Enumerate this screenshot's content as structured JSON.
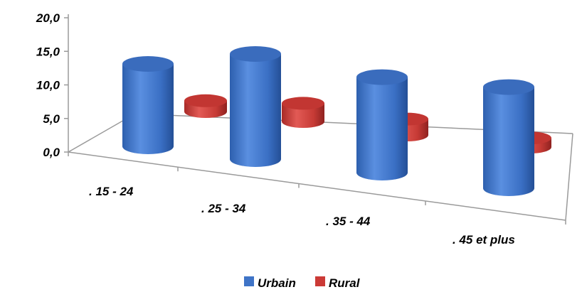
{
  "chart_data": {
    "type": "bar",
    "style": "3d-cylinder",
    "categories": [
      ". 15 - 24",
      ". 25 - 34",
      ". 35 - 44",
      ". 45 et plus"
    ],
    "series": [
      {
        "name": "Urbain",
        "values": [
          14.5,
          18.5,
          16.8,
          17.8
        ]
      },
      {
        "name": "Rural",
        "values": [
          1.9,
          3.2,
          2.8,
          1.6
        ]
      }
    ],
    "y_ticks": [
      "0,0",
      "5,0",
      "10,0",
      "15,0",
      "20,0"
    ],
    "ylim": [
      0,
      20
    ],
    "grid": false,
    "legend": "bottom",
    "colors": {
      "Urbain": "#3f74c7",
      "Rural": "#cb3a36"
    }
  }
}
